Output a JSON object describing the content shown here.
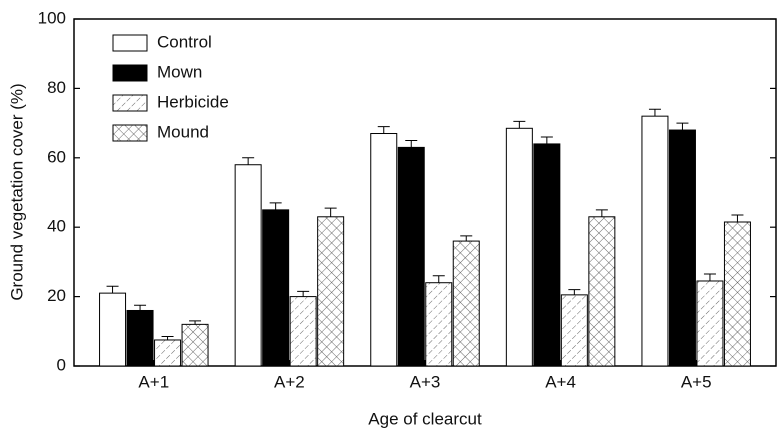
{
  "chart_data": {
    "type": "bar",
    "y_label": "Ground vegetation cover (%)",
    "x_label": "Age of clearcut",
    "categories": [
      "A+1",
      "A+2",
      "A+3",
      "A+4",
      "A+5"
    ],
    "series": [
      {
        "name": "Control",
        "color": "#ffffff",
        "hatch": "none",
        "values": [
          21,
          58,
          67,
          68.5,
          72
        ],
        "errors": [
          2,
          2,
          2,
          2,
          2
        ]
      },
      {
        "name": "Mown",
        "color": "#000000",
        "hatch": "none",
        "values": [
          16,
          45,
          63,
          64,
          68
        ],
        "errors": [
          1.5,
          2,
          2,
          2,
          2
        ]
      },
      {
        "name": "Herbicide",
        "color": "#ffffff",
        "hatch": "diagonal",
        "values": [
          7.5,
          20,
          24,
          20.5,
          24.5
        ],
        "errors": [
          1,
          1.5,
          2,
          1.5,
          2
        ]
      },
      {
        "name": "Mound",
        "color": "#ffffff",
        "hatch": "cross",
        "values": [
          12,
          43,
          36,
          43,
          41.5
        ],
        "errors": [
          1,
          2.5,
          1.5,
          2,
          2
        ]
      }
    ],
    "ylim": [
      0,
      100
    ],
    "yticks": [
      0,
      20,
      40,
      60,
      80,
      100
    ],
    "legend": "upper-left"
  }
}
